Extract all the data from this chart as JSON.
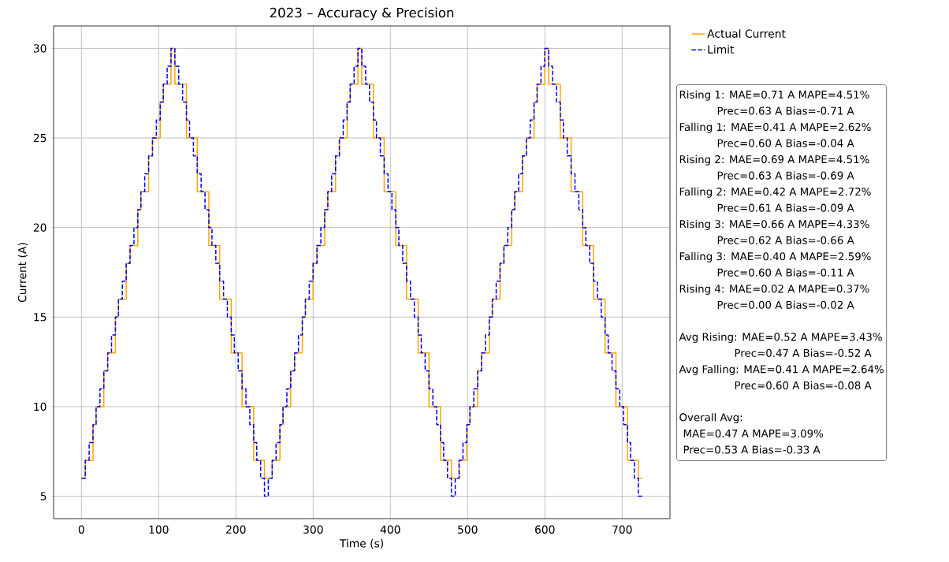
{
  "chart_data": {
    "type": "step",
    "title": "2023 – Accuracy & Precision",
    "xlabel": "Time (s)",
    "ylabel": "Current (A)",
    "x": [
      0,
      5,
      10,
      15,
      19,
      24,
      29,
      34,
      39,
      44,
      48,
      53,
      58,
      63,
      68,
      73,
      77,
      82,
      87,
      92,
      97,
      102,
      106,
      111,
      116,
      121,
      126,
      131,
      136,
      140,
      145,
      150,
      155,
      160,
      165,
      169,
      174,
      179,
      184,
      189,
      194,
      198,
      203,
      208,
      213,
      218,
      223,
      227,
      232,
      237,
      242,
      247,
      252,
      257,
      261,
      266,
      271,
      276,
      281,
      286,
      290,
      295,
      300,
      305,
      310,
      315,
      319,
      324,
      329,
      334,
      339,
      344,
      348,
      353,
      358,
      363,
      368,
      373,
      378,
      382,
      387,
      392,
      397,
      402,
      407,
      411,
      416,
      421,
      426,
      431,
      436,
      440,
      445,
      450,
      455,
      460,
      465,
      469,
      474,
      479,
      484,
      489,
      494,
      499,
      503,
      508,
      513,
      518,
      523,
      528,
      532,
      537,
      542,
      547,
      552,
      557,
      561,
      566,
      571,
      576,
      581,
      586,
      590,
      595,
      600,
      605,
      610,
      615,
      620,
      624,
      629,
      634,
      639,
      644,
      649,
      653,
      658,
      663,
      668,
      673,
      678,
      682,
      687,
      692,
      697,
      702,
      707,
      711,
      716,
      721,
      726
    ],
    "series": [
      {
        "name": "Actual Current",
        "color": "#ffa500",
        "line_style": "solid",
        "values": [
          6,
          7,
          7,
          9,
          10,
          10,
          12,
          13,
          13,
          15,
          16,
          16,
          18,
          19,
          19,
          21,
          22,
          22,
          24,
          25,
          25,
          27,
          28,
          28,
          30,
          28,
          28,
          28,
          25,
          25,
          25,
          22,
          22,
          22,
          19,
          19,
          19,
          16,
          16,
          16,
          13,
          13,
          13,
          10,
          10,
          10,
          7,
          7,
          7,
          6,
          6,
          7,
          7,
          9,
          10,
          10,
          12,
          13,
          13,
          15,
          16,
          16,
          18,
          19,
          19,
          21,
          22,
          22,
          24,
          25,
          25,
          27,
          28,
          28,
          30,
          28,
          28,
          28,
          25,
          25,
          25,
          22,
          22,
          22,
          19,
          19,
          19,
          16,
          16,
          16,
          13,
          13,
          13,
          10,
          10,
          10,
          7,
          7,
          7,
          6,
          6,
          7,
          7,
          9,
          10,
          10,
          12,
          13,
          13,
          15,
          16,
          16,
          18,
          19,
          19,
          21,
          22,
          22,
          24,
          25,
          25,
          27,
          28,
          28,
          30,
          28,
          28,
          28,
          25,
          25,
          25,
          22,
          22,
          22,
          19,
          19,
          19,
          16,
          16,
          16,
          13,
          13,
          13,
          10,
          10,
          10,
          7,
          7,
          7,
          6,
          6
        ]
      },
      {
        "name": "Limit",
        "color": "#0000ff",
        "line_style": "dashed",
        "values": [
          6,
          7,
          8,
          9,
          10,
          11,
          12,
          13,
          14,
          15,
          16,
          17,
          18,
          19,
          20,
          21,
          22,
          23,
          24,
          25,
          26,
          27,
          28,
          29,
          30,
          29,
          28,
          27,
          26,
          25,
          24,
          23,
          22,
          21,
          20,
          19,
          18,
          17,
          16,
          15,
          14,
          13,
          12,
          11,
          10,
          9,
          8,
          7,
          6,
          5,
          6,
          7,
          8,
          9,
          10,
          11,
          12,
          13,
          14,
          15,
          16,
          17,
          18,
          19,
          20,
          21,
          22,
          23,
          24,
          25,
          26,
          27,
          28,
          29,
          30,
          29,
          28,
          27,
          26,
          25,
          24,
          23,
          22,
          21,
          20,
          19,
          18,
          17,
          16,
          15,
          14,
          13,
          12,
          11,
          10,
          9,
          8,
          7,
          6,
          5,
          6,
          7,
          8,
          9,
          10,
          11,
          12,
          13,
          14,
          15,
          16,
          17,
          18,
          19,
          20,
          21,
          22,
          23,
          24,
          25,
          26,
          27,
          28,
          29,
          30,
          29,
          28,
          27,
          26,
          25,
          24,
          23,
          22,
          21,
          20,
          19,
          18,
          17,
          16,
          15,
          14,
          13,
          12,
          11,
          10,
          9,
          8,
          7,
          6,
          5,
          5
        ]
      }
    ],
    "xlim": [
      -36,
      762
    ],
    "ylim": [
      3.75,
      31.25
    ],
    "xticks": [
      0,
      100,
      200,
      300,
      400,
      500,
      600,
      700
    ],
    "yticks": [
      5,
      10,
      15,
      20,
      25,
      30
    ],
    "grid": true,
    "legend": "right",
    "annotations": [
      "Rising 1: MAE=0.71 A  MAPE=4.51%",
      "Prec=0.63 A  Bias=-0.71 A",
      "Falling 1: MAE=0.41 A  MAPE=2.62%",
      "Prec=0.60 A  Bias=-0.04 A",
      "Rising 2: MAE=0.69 A  MAPE=4.51%",
      "Prec=0.63 A  Bias=-0.69 A",
      "Falling 2: MAE=0.42 A  MAPE=2.72%",
      "Prec=0.61 A  Bias=-0.09 A",
      "Rising 3: MAE=0.66 A  MAPE=4.33%",
      "Prec=0.62 A  Bias=-0.66 A",
      "Falling 3: MAE=0.40 A  MAPE=2.59%",
      "Prec=0.60 A  Bias=-0.11 A",
      "Rising 4: MAE=0.02 A  MAPE=0.37%",
      "Prec=0.00 A  Bias=-0.02 A",
      "Avg Rising:  MAE=0.52 A  MAPE=3.43%",
      "Prec=0.47 A  Bias=-0.52 A",
      "Avg Falling: MAE=0.41 A  MAPE=2.64%",
      "Prec=0.60 A  Bias=-0.08 A",
      "Overall Avg:",
      "MAE=0.47 A  MAPE=3.09%",
      "Prec=0.53 A  Bias=-0.33 A"
    ]
  }
}
